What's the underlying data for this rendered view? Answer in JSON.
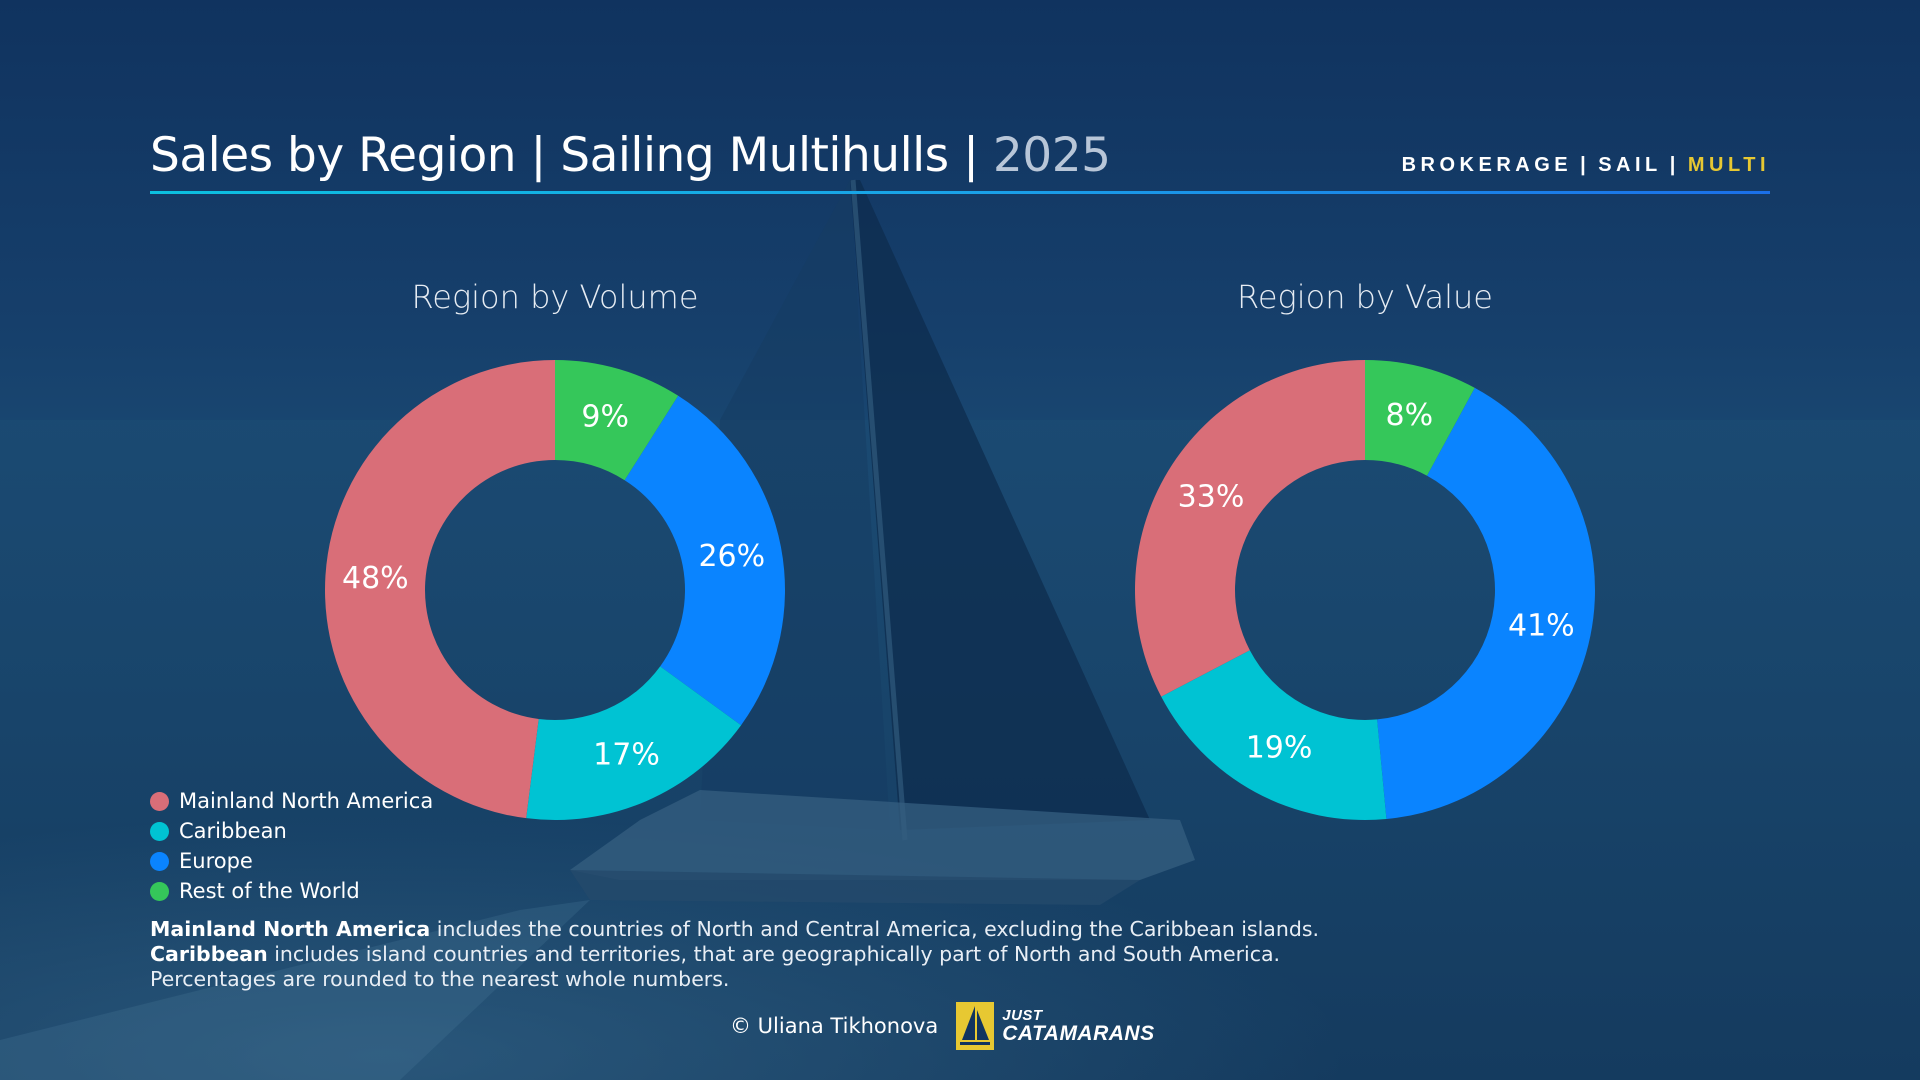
{
  "header": {
    "title": "Sales by Region | Sailing Multihulls | ",
    "year": "2025",
    "nav": [
      "BROKERAGE",
      "SAIL",
      "MULTI"
    ],
    "nav_separator": "|",
    "nav_active_color": "#e7c832"
  },
  "colors": {
    "Mainland North America": "#d96e78",
    "Caribbean": "#00c3d3",
    "Europe": "#0a84ff",
    "Rest of the World": "#35c75a"
  },
  "chart_data": [
    {
      "type": "pie",
      "title": "Region by Volume",
      "categories": [
        "Mainland North America",
        "Caribbean",
        "Europe",
        "Rest of the World"
      ],
      "values": [
        48,
        17,
        26,
        9
      ],
      "labels": [
        "48%",
        "17%",
        "26%",
        "9%"
      ],
      "unit": "%"
    },
    {
      "type": "pie",
      "title": "Region by Value",
      "categories": [
        "Mainland North America",
        "Caribbean",
        "Europe",
        "Rest of the World"
      ],
      "values": [
        33,
        19,
        41,
        8
      ],
      "labels": [
        "33%",
        "19%",
        "41%",
        "8%"
      ],
      "unit": "%"
    }
  ],
  "legend": [
    {
      "label": "Mainland North America",
      "color": "#d96e78"
    },
    {
      "label": "Caribbean",
      "color": "#00c3d3"
    },
    {
      "label": "Europe",
      "color": "#0a84ff"
    },
    {
      "label": "Rest of the World",
      "color": "#35c75a"
    }
  ],
  "notes": {
    "line1_bold": "Mainland North America",
    "line1_rest": " includes the countries of North and Central America, excluding the Caribbean islands.",
    "line2_bold": "Caribbean",
    "line2_rest": " includes island countries and territories, that are geographically part of North and South America.",
    "line3": "Percentages are rounded to the nearest whole numbers."
  },
  "footer": {
    "copyright": "© Uliana Tikhonova",
    "brand_line1": "JUST",
    "brand_line2": "CATAMARANS"
  }
}
